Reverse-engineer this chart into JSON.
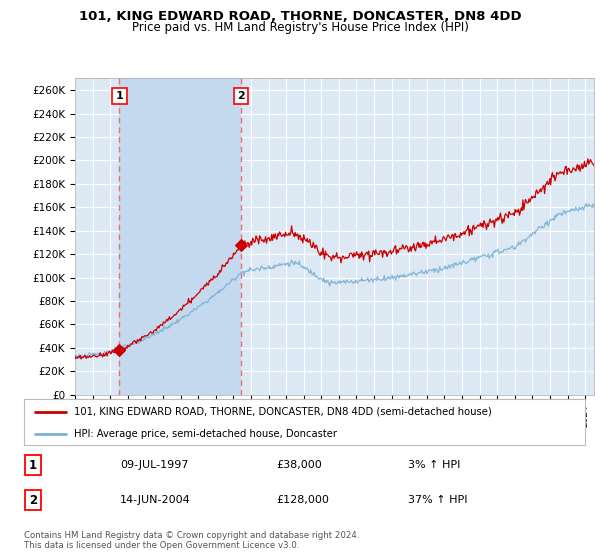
{
  "title": "101, KING EDWARD ROAD, THORNE, DONCASTER, DN8 4DD",
  "subtitle": "Price paid vs. HM Land Registry's House Price Index (HPI)",
  "ylabel_ticks": [
    "£0",
    "£20K",
    "£40K",
    "£60K",
    "£80K",
    "£100K",
    "£120K",
    "£140K",
    "£160K",
    "£180K",
    "£200K",
    "£220K",
    "£240K",
    "£260K"
  ],
  "ylim": [
    0,
    270000
  ],
  "xlim_start": 1995.0,
  "xlim_end": 2024.5,
  "sale1_x": 1997.52,
  "sale1_y": 38000,
  "sale2_x": 2004.45,
  "sale2_y": 128000,
  "sale1_label": "1",
  "sale2_label": "2",
  "sale1_date": "09-JUL-1997",
  "sale1_price": "£38,000",
  "sale1_hpi": "3% ↑ HPI",
  "sale2_date": "14-JUN-2004",
  "sale2_price": "£128,000",
  "sale2_hpi": "37% ↑ HPI",
  "legend_line1": "101, KING EDWARD ROAD, THORNE, DONCASTER, DN8 4DD (semi-detached house)",
  "legend_line2": "HPI: Average price, semi-detached house, Doncaster",
  "footer": "Contains HM Land Registry data © Crown copyright and database right 2024.\nThis data is licensed under the Open Government Licence v3.0.",
  "line_color_red": "#cc0000",
  "line_color_blue": "#7ab0d4",
  "bg_color": "#dce9f5",
  "shade_color": "#c5d9ee",
  "grid_color": "#ffffff",
  "vline_color": "#e87070"
}
